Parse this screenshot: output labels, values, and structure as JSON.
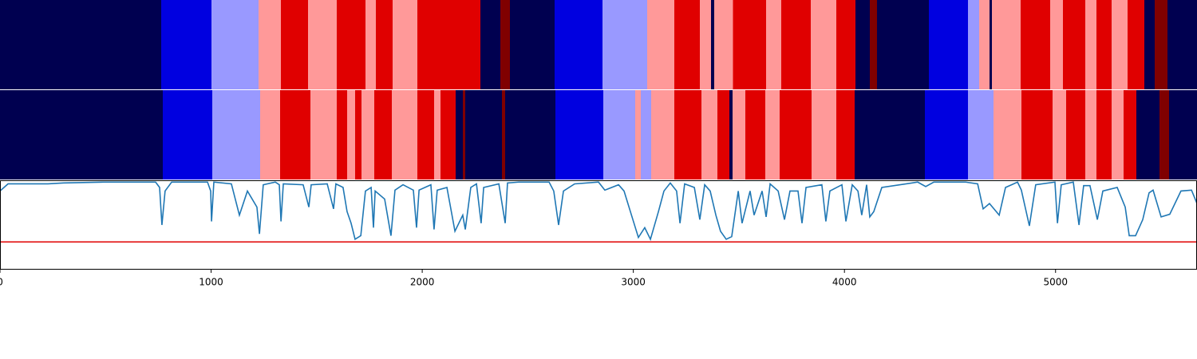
{
  "chart_data": [
    {
      "type": "segments",
      "palette": [
        "#000050",
        "#0000e0",
        "#9999ff",
        "#ff9999",
        "#e00000",
        "#800000"
      ],
      "xlim": [
        0,
        5670
      ],
      "starts": [
        0,
        764,
        1002,
        1225,
        1331,
        1459,
        1595,
        1731,
        1781,
        1860,
        1977,
        2276,
        2370,
        2416,
        2628,
        2854,
        3066,
        3194,
        3315,
        3368,
        3384,
        3471,
        3629,
        3701,
        3841,
        3962,
        4053,
        4120,
        4155,
        4400,
        4585,
        4638,
        4687,
        4699,
        4835,
        4974,
        5035,
        5141,
        5194,
        5266,
        5341,
        5421,
        5470,
        5530
      ],
      "classes": [
        0,
        1,
        2,
        3,
        4,
        3,
        4,
        3,
        4,
        3,
        4,
        0,
        5,
        0,
        1,
        2,
        3,
        4,
        3,
        0,
        3,
        4,
        3,
        4,
        3,
        4,
        0,
        5,
        0,
        1,
        2,
        3,
        0,
        3,
        4,
        3,
        4,
        3,
        4,
        3,
        4,
        0,
        5,
        0
      ]
    },
    {
      "type": "segments",
      "palette": [
        "#000050",
        "#0000e0",
        "#9999ff",
        "#ff9999",
        "#e00000",
        "#800000"
      ],
      "xlim": [
        0,
        5670
      ],
      "starts": [
        0,
        771,
        1005,
        1232,
        1327,
        1470,
        1595,
        1644,
        1682,
        1712,
        1773,
        1856,
        1977,
        2056,
        2087,
        2158,
        2192,
        2204,
        2378,
        2393,
        2631,
        2858,
        3009,
        3035,
        3084,
        3194,
        3323,
        3398,
        3455,
        3470,
        3531,
        3625,
        3693,
        3844,
        3961,
        4048,
        4381,
        4586,
        4706,
        4838,
        4985,
        5050,
        5141,
        5194,
        5266,
        5322,
        5382,
        5492,
        5538
      ],
      "classes": [
        0,
        1,
        2,
        3,
        4,
        3,
        4,
        3,
        4,
        3,
        4,
        3,
        4,
        3,
        4,
        0,
        5,
        0,
        5,
        0,
        1,
        2,
        3,
        2,
        3,
        4,
        3,
        4,
        0,
        3,
        4,
        3,
        4,
        3,
        4,
        0,
        1,
        2,
        3,
        4,
        3,
        4,
        3,
        4,
        3,
        4,
        0,
        5,
        0
      ]
    },
    {
      "type": "line",
      "color": "#1f77b4",
      "threshold": 0.31,
      "threshold_color": "#e00000",
      "xlim": [
        0,
        5670
      ],
      "ylim": [
        0,
        1
      ],
      "xticks": [
        0,
        1000,
        2000,
        3000,
        4000,
        5000
      ],
      "x": [
        0,
        38,
        227,
        302,
        491,
        737,
        756,
        767,
        782,
        813,
        983,
        998,
        1002,
        1013,
        1096,
        1134,
        1172,
        1217,
        1229,
        1247,
        1304,
        1323,
        1331,
        1342,
        1436,
        1463,
        1474,
        1550,
        1580,
        1591,
        1625,
        1644,
        1663,
        1682,
        1709,
        1731,
        1758,
        1769,
        1777,
        1822,
        1852,
        1871,
        1909,
        1958,
        1973,
        1985,
        2041,
        2056,
        2071,
        2117,
        2155,
        2192,
        2204,
        2230,
        2257,
        2279,
        2291,
        2363,
        2393,
        2404,
        2457,
        2601,
        2623,
        2646,
        2669,
        2722,
        2835,
        2865,
        2930,
        2956,
        2986,
        3024,
        3054,
        3081,
        3119,
        3145,
        3175,
        3205,
        3221,
        3243,
        3289,
        3315,
        3338,
        3364,
        3391,
        3413,
        3440,
        3466,
        3497,
        3515,
        3553,
        3572,
        3610,
        3629,
        3648,
        3686,
        3716,
        3742,
        3780,
        3799,
        3818,
        3893,
        3912,
        3931,
        3988,
        4007,
        4037,
        4064,
        4082,
        4105,
        4120,
        4139,
        4177,
        4347,
        4385,
        4423,
        4574,
        4631,
        4657,
        4687,
        4733,
        4763,
        4820,
        4838,
        4876,
        4906,
        4997,
        5009,
        5027,
        5084,
        5111,
        5133,
        5163,
        5198,
        5224,
        5292,
        5330,
        5349,
        5379,
        5413,
        5443,
        5462,
        5500,
        5541,
        5594,
        5644,
        5670
      ],
      "values": [
        0.88,
        0.96,
        0.96,
        0.97,
        0.98,
        0.98,
        0.92,
        0.5,
        0.88,
        0.98,
        0.98,
        0.88,
        0.54,
        0.98,
        0.96,
        0.61,
        0.88,
        0.7,
        0.4,
        0.95,
        0.98,
        0.95,
        0.54,
        0.96,
        0.95,
        0.7,
        0.95,
        0.96,
        0.68,
        0.96,
        0.92,
        0.65,
        0.52,
        0.34,
        0.38,
        0.88,
        0.92,
        0.47,
        0.88,
        0.79,
        0.38,
        0.89,
        0.95,
        0.89,
        0.47,
        0.89,
        0.95,
        0.45,
        0.89,
        0.92,
        0.43,
        0.61,
        0.45,
        0.92,
        0.96,
        0.52,
        0.92,
        0.96,
        0.52,
        0.97,
        0.98,
        0.98,
        0.88,
        0.5,
        0.88,
        0.96,
        0.98,
        0.89,
        0.95,
        0.88,
        0.65,
        0.36,
        0.47,
        0.34,
        0.65,
        0.88,
        0.97,
        0.88,
        0.52,
        0.96,
        0.92,
        0.56,
        0.95,
        0.88,
        0.61,
        0.43,
        0.34,
        0.37,
        0.88,
        0.52,
        0.88,
        0.61,
        0.88,
        0.59,
        0.96,
        0.88,
        0.56,
        0.88,
        0.88,
        0.52,
        0.92,
        0.95,
        0.54,
        0.88,
        0.95,
        0.54,
        0.95,
        0.88,
        0.61,
        0.95,
        0.59,
        0.65,
        0.92,
        0.98,
        0.93,
        0.98,
        0.98,
        0.96,
        0.68,
        0.74,
        0.61,
        0.92,
        0.98,
        0.89,
        0.49,
        0.95,
        0.98,
        0.52,
        0.95,
        0.98,
        0.5,
        0.94,
        0.94,
        0.56,
        0.88,
        0.92,
        0.7,
        0.38,
        0.38,
        0.56,
        0.86,
        0.89,
        0.59,
        0.62,
        0.88,
        0.89,
        0.74
      ]
    }
  ]
}
